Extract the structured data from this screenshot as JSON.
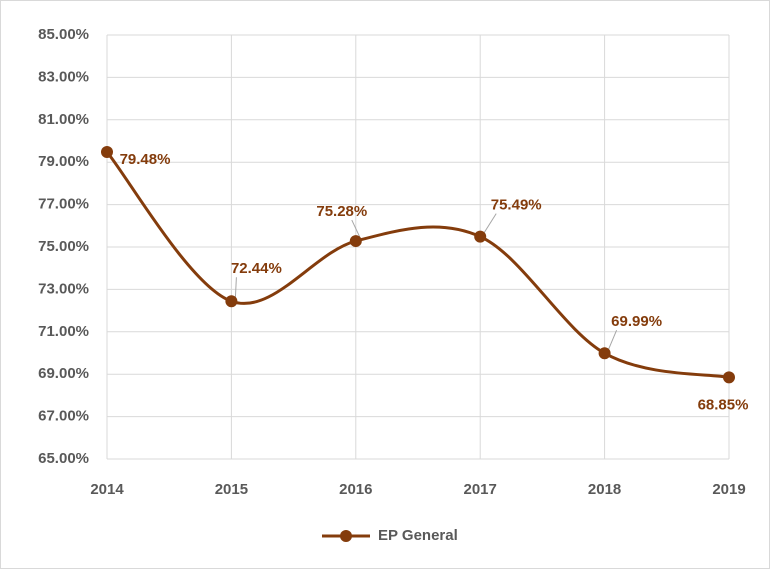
{
  "chart_data": {
    "type": "line",
    "categories": [
      "2014",
      "2015",
      "2016",
      "2017",
      "2018",
      "2019"
    ],
    "series": [
      {
        "name": "EP General",
        "color": "#843c0c",
        "values": [
          79.48,
          72.44,
          75.28,
          75.49,
          69.99,
          68.85
        ],
        "value_labels": [
          "79.48%",
          "72.44%",
          "75.28%",
          "75.49%",
          "69.99%",
          "68.85%"
        ]
      }
    ],
    "ylim": [
      65,
      85
    ],
    "yticks": [
      {
        "value": 65,
        "label": "65.00%"
      },
      {
        "value": 67,
        "label": "67.00%"
      },
      {
        "value": 69,
        "label": "69.00%"
      },
      {
        "value": 71,
        "label": "71.00%"
      },
      {
        "value": 73,
        "label": "73.00%"
      },
      {
        "value": 75,
        "label": "75.00%"
      },
      {
        "value": 77,
        "label": "77.00%"
      },
      {
        "value": 79,
        "label": "79.00%"
      },
      {
        "value": 81,
        "label": "81.00%"
      },
      {
        "value": 83,
        "label": "83.00%"
      },
      {
        "value": 85,
        "label": "85.00%"
      }
    ],
    "grid": true,
    "smooth": true,
    "legend": "bottom"
  }
}
